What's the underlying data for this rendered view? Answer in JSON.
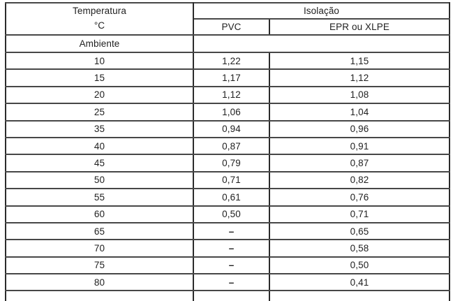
{
  "page": {
    "background": "#ffffff",
    "text_color": "#1f1f1f",
    "border_color": "#2b2b2b"
  },
  "table": {
    "header": {
      "temperature_title": "Temperatura",
      "temperature_unit": "°C",
      "insulation_group": "Isolação",
      "pvc_label": "PVC",
      "epr_label": "EPR ou XLPE"
    },
    "ambient_label": "Ambiente",
    "dash_char": "–",
    "rows": [
      {
        "temp": "10",
        "pvc": "1,22",
        "epr": "1,15"
      },
      {
        "temp": "15",
        "pvc": "1,17",
        "epr": "1,12"
      },
      {
        "temp": "20",
        "pvc": "1,12",
        "epr": "1,08"
      },
      {
        "temp": "25",
        "pvc": "1,06",
        "epr": "1,04"
      },
      {
        "temp": "35",
        "pvc": "0,94",
        "epr": "0,96"
      },
      {
        "temp": "40",
        "pvc": "0,87",
        "epr": "0,91"
      },
      {
        "temp": "45",
        "pvc": "0,79",
        "epr": "0,87"
      },
      {
        "temp": "50",
        "pvc": "0,71",
        "epr": "0,82"
      },
      {
        "temp": "55",
        "pvc": "0,61",
        "epr": "0,76"
      },
      {
        "temp": "60",
        "pvc": "0,50",
        "epr": "0,71"
      },
      {
        "temp": "65",
        "pvc": "–",
        "epr": "0,65"
      },
      {
        "temp": "70",
        "pvc": "–",
        "epr": "0,58"
      },
      {
        "temp": "75",
        "pvc": "–",
        "epr": "0,50"
      },
      {
        "temp": "80",
        "pvc": "–",
        "epr": "0,41"
      }
    ]
  }
}
